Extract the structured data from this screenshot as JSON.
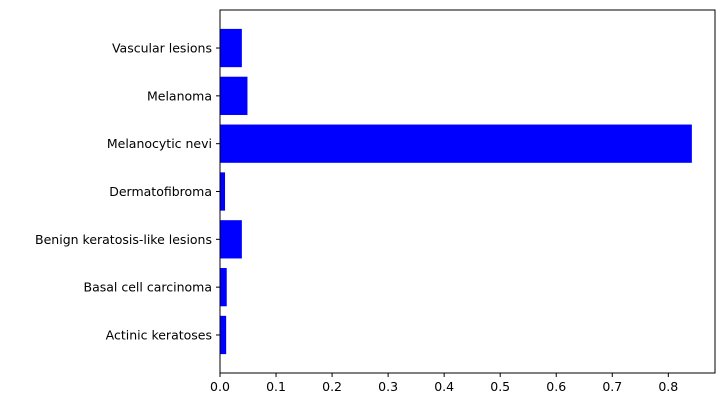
{
  "chart_data": {
    "type": "bar",
    "orientation": "horizontal",
    "categories": [
      "Actinic keratoses",
      "Basal cell carcinoma",
      "Benign keratosis-like lesions ",
      "Dermatofibroma",
      "Melanocytic nevi",
      "Melanoma",
      "Vascular lesions"
    ],
    "values": [
      0.011,
      0.012,
      0.039,
      0.009,
      0.842,
      0.049,
      0.039
    ],
    "title": "",
    "xlabel": "",
    "ylabel": "",
    "xlim": [
      0,
      0.8833
    ],
    "xticks": [
      0.0,
      0.1,
      0.2,
      0.3,
      0.4,
      0.5,
      0.6,
      0.7,
      0.8
    ],
    "xtick_labels": [
      "0.0",
      "0.1",
      "0.2",
      "0.3",
      "0.4",
      "0.5",
      "0.6",
      "0.7",
      "0.8"
    ],
    "grid": false,
    "legend": "none",
    "bar_color": "#0000ff"
  }
}
